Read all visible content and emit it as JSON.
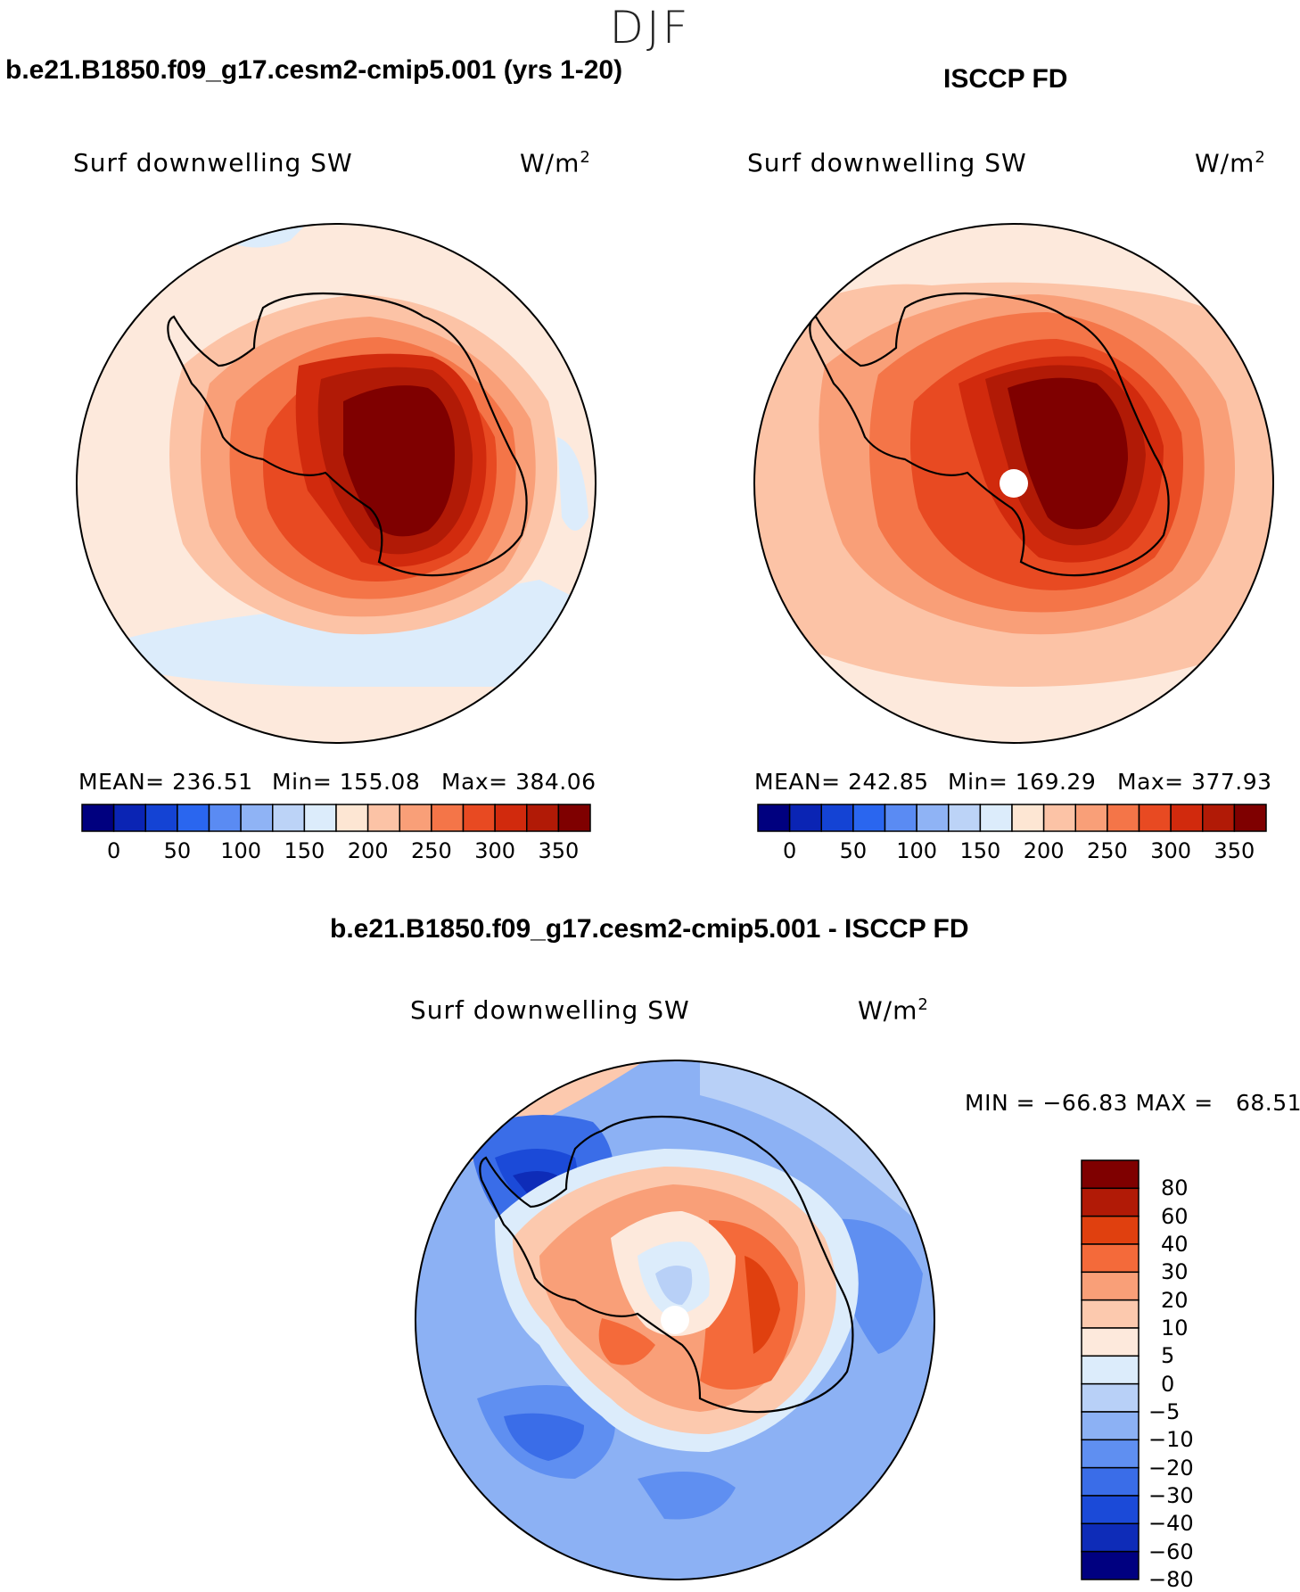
{
  "season": "DJF",
  "panels": [
    {
      "case": "b.e21.B1850.f09_g17.cesm2-cmip5.001 (yrs 1-20)",
      "field": "Surf downwelling SW",
      "units": "W/m",
      "units_sup": "2",
      "stats": {
        "mean": "MEAN= 236.51",
        "min": "Min= 155.08",
        "max": "Max= 384.06"
      }
    },
    {
      "case": "ISCCP FD",
      "field": "Surf downwelling SW",
      "units": "W/m",
      "units_sup": "2",
      "stats": {
        "mean": "MEAN= 242.85",
        "min": "Min= 169.29",
        "max": "Max= 377.93"
      }
    }
  ],
  "abs_colorbar": {
    "colors": [
      "#00007f",
      "#0a24b4",
      "#1443d4",
      "#2a66ef",
      "#5a8bf3",
      "#8fb3f5",
      "#bcd3f7",
      "#dcecfb",
      "#fde6d3",
      "#fcc3a6",
      "#f99f78",
      "#f47548",
      "#e84a22",
      "#d12a0d",
      "#b11a06",
      "#7f0000"
    ],
    "labels": [
      "0",
      "50",
      "100",
      "150",
      "200",
      "250",
      "300",
      "350"
    ]
  },
  "diff_panel": {
    "title": "b.e21.B1850.f09_g17.cesm2-cmip5.001 - ISCCP FD",
    "field": "Surf downwelling SW",
    "units": "W/m",
    "units_sup": "2",
    "minmax": "MIN = −66.83 MAX =   68.51"
  },
  "diff_colorbar": {
    "colors": [
      "#7f0000",
      "#b11a06",
      "#e0400f",
      "#f46a3a",
      "#f99f78",
      "#fcc9ae",
      "#fde9dc",
      "#dcecfb",
      "#b8d0f7",
      "#8cb1f4",
      "#5f8ff1",
      "#3a6de8",
      "#1b4ad8",
      "#0e2cb8",
      "#000080"
    ],
    "labels": [
      "80",
      "60",
      "40",
      "30",
      "20",
      "10",
      "5",
      "0",
      "−5",
      "−10",
      "−20",
      "−30",
      "−40",
      "−60",
      "−80"
    ]
  },
  "colors": {
    "ocean_abs": "#fde9dc",
    "land_outline": "#000000"
  }
}
